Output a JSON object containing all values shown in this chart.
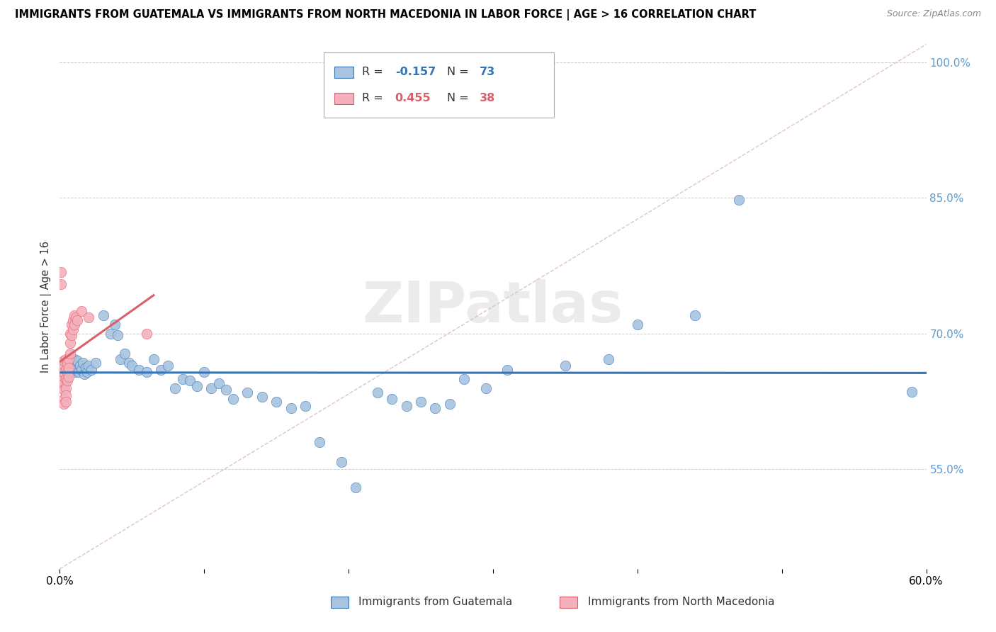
{
  "title": "IMMIGRANTS FROM GUATEMALA VS IMMIGRANTS FROM NORTH MACEDONIA IN LABOR FORCE | AGE > 16 CORRELATION CHART",
  "source": "Source: ZipAtlas.com",
  "xlabel_blue": "Immigrants from Guatemala",
  "xlabel_pink": "Immigrants from North Macedonia",
  "ylabel": "In Labor Force | Age > 16",
  "xlim": [
    0.0,
    0.6
  ],
  "ylim": [
    0.44,
    1.02
  ],
  "x_ticks": [
    0.0,
    0.1,
    0.2,
    0.3,
    0.4,
    0.5,
    0.6
  ],
  "y_ticks": [
    0.55,
    0.7,
    0.85,
    1.0
  ],
  "blue_color": "#a8c4e0",
  "blue_line_color": "#3575b5",
  "pink_color": "#f4b0bc",
  "pink_line_color": "#d9606b",
  "dashed_line_color": "#ddbbcc",
  "R_blue": -0.157,
  "N_blue": 73,
  "R_pink": 0.455,
  "N_pink": 38,
  "watermark": "ZIPatlas",
  "background_color": "#ffffff",
  "grid_color": "#cccccc",
  "right_axis_color": "#5b9bd5",
  "blue_scatter": [
    [
      0.002,
      0.668
    ],
    [
      0.003,
      0.664
    ],
    [
      0.004,
      0.67
    ],
    [
      0.005,
      0.672
    ],
    [
      0.005,
      0.66
    ],
    [
      0.006,
      0.665
    ],
    [
      0.006,
      0.668
    ],
    [
      0.007,
      0.658
    ],
    [
      0.007,
      0.67
    ],
    [
      0.008,
      0.665
    ],
    [
      0.008,
      0.66
    ],
    [
      0.009,
      0.668
    ],
    [
      0.009,
      0.662
    ],
    [
      0.01,
      0.672
    ],
    [
      0.01,
      0.658
    ],
    [
      0.011,
      0.665
    ],
    [
      0.012,
      0.66
    ],
    [
      0.012,
      0.67
    ],
    [
      0.013,
      0.658
    ],
    [
      0.014,
      0.665
    ],
    [
      0.015,
      0.66
    ],
    [
      0.016,
      0.668
    ],
    [
      0.017,
      0.655
    ],
    [
      0.018,
      0.662
    ],
    [
      0.019,
      0.658
    ],
    [
      0.02,
      0.665
    ],
    [
      0.022,
      0.66
    ],
    [
      0.025,
      0.668
    ],
    [
      0.03,
      0.72
    ],
    [
      0.035,
      0.7
    ],
    [
      0.038,
      0.71
    ],
    [
      0.04,
      0.698
    ],
    [
      0.042,
      0.672
    ],
    [
      0.045,
      0.678
    ],
    [
      0.048,
      0.668
    ],
    [
      0.05,
      0.665
    ],
    [
      0.055,
      0.66
    ],
    [
      0.06,
      0.658
    ],
    [
      0.065,
      0.672
    ],
    [
      0.07,
      0.66
    ],
    [
      0.075,
      0.665
    ],
    [
      0.08,
      0.64
    ],
    [
      0.085,
      0.65
    ],
    [
      0.09,
      0.648
    ],
    [
      0.095,
      0.642
    ],
    [
      0.1,
      0.658
    ],
    [
      0.105,
      0.64
    ],
    [
      0.11,
      0.645
    ],
    [
      0.115,
      0.638
    ],
    [
      0.12,
      0.628
    ],
    [
      0.13,
      0.635
    ],
    [
      0.14,
      0.63
    ],
    [
      0.15,
      0.625
    ],
    [
      0.16,
      0.618
    ],
    [
      0.17,
      0.62
    ],
    [
      0.18,
      0.58
    ],
    [
      0.195,
      0.558
    ],
    [
      0.205,
      0.53
    ],
    [
      0.22,
      0.635
    ],
    [
      0.23,
      0.628
    ],
    [
      0.24,
      0.62
    ],
    [
      0.25,
      0.625
    ],
    [
      0.26,
      0.618
    ],
    [
      0.27,
      0.622
    ],
    [
      0.28,
      0.65
    ],
    [
      0.295,
      0.64
    ],
    [
      0.31,
      0.66
    ],
    [
      0.35,
      0.665
    ],
    [
      0.38,
      0.672
    ],
    [
      0.4,
      0.71
    ],
    [
      0.44,
      0.72
    ],
    [
      0.47,
      0.848
    ],
    [
      0.59,
      0.636
    ]
  ],
  "pink_scatter": [
    [
      0.001,
      0.768
    ],
    [
      0.001,
      0.755
    ],
    [
      0.002,
      0.665
    ],
    [
      0.002,
      0.655
    ],
    [
      0.002,
      0.648
    ],
    [
      0.002,
      0.64
    ],
    [
      0.003,
      0.67
    ],
    [
      0.003,
      0.658
    ],
    [
      0.003,
      0.645
    ],
    [
      0.003,
      0.638
    ],
    [
      0.003,
      0.628
    ],
    [
      0.003,
      0.622
    ],
    [
      0.004,
      0.672
    ],
    [
      0.004,
      0.66
    ],
    [
      0.004,
      0.65
    ],
    [
      0.004,
      0.64
    ],
    [
      0.004,
      0.632
    ],
    [
      0.004,
      0.625
    ],
    [
      0.005,
      0.668
    ],
    [
      0.005,
      0.658
    ],
    [
      0.005,
      0.648
    ],
    [
      0.006,
      0.672
    ],
    [
      0.006,
      0.662
    ],
    [
      0.006,
      0.652
    ],
    [
      0.007,
      0.7
    ],
    [
      0.007,
      0.69
    ],
    [
      0.007,
      0.678
    ],
    [
      0.008,
      0.71
    ],
    [
      0.008,
      0.698
    ],
    [
      0.009,
      0.715
    ],
    [
      0.009,
      0.705
    ],
    [
      0.01,
      0.72
    ],
    [
      0.01,
      0.71
    ],
    [
      0.011,
      0.718
    ],
    [
      0.012,
      0.715
    ],
    [
      0.015,
      0.725
    ],
    [
      0.02,
      0.718
    ],
    [
      0.06,
      0.7
    ]
  ]
}
